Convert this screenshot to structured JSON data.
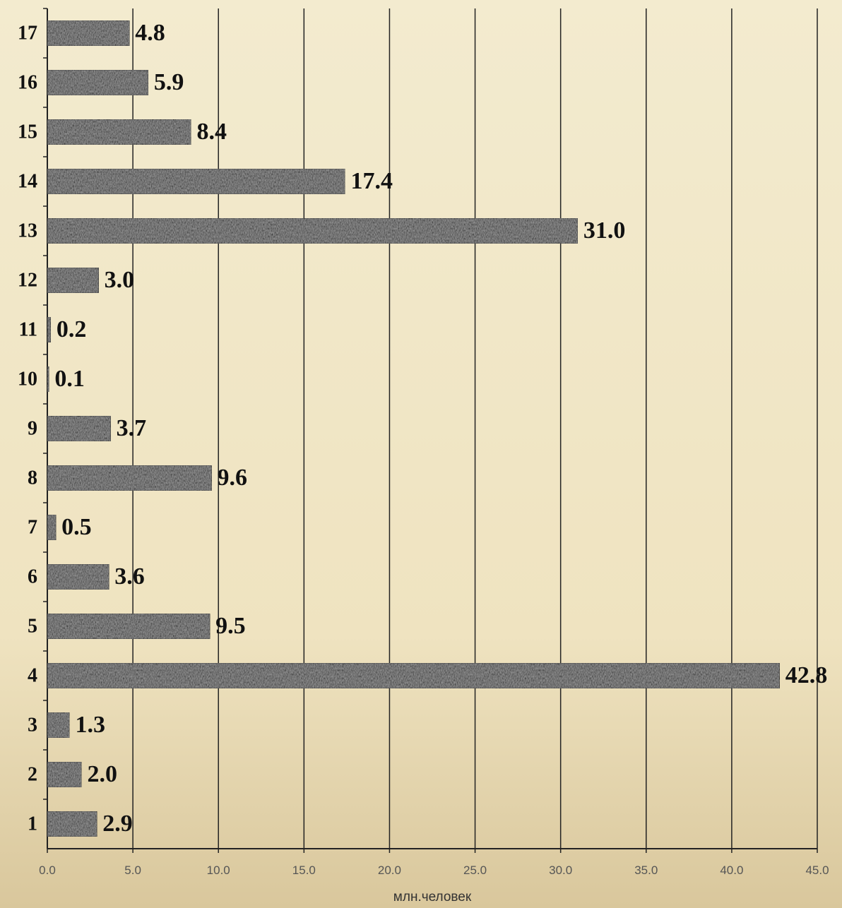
{
  "chart_data": {
    "type": "barh",
    "x_label": "млн.человек",
    "categories": [
      "1",
      "2",
      "3",
      "4",
      "5",
      "6",
      "7",
      "8",
      "9",
      "10",
      "11",
      "12",
      "13",
      "14",
      "15",
      "16",
      "17"
    ],
    "values": [
      2.9,
      2.0,
      1.3,
      42.8,
      9.5,
      3.6,
      0.5,
      9.6,
      3.7,
      0.1,
      0.2,
      3.0,
      31.0,
      17.4,
      8.4,
      5.9,
      4.8
    ],
    "value_labels": [
      "2.9",
      "2.0",
      "1.3",
      "42.8",
      "9.5",
      "3.6",
      "0.5",
      "9.6",
      "3.7",
      "0.1",
      "0.2",
      "3.0",
      "31.0",
      "17.4",
      "8.4",
      "5.9",
      "4.8"
    ],
    "color": "#8a8a8a",
    "xlim": [
      0,
      45
    ],
    "xticks": [
      {
        "value": 0,
        "label": "0.0"
      },
      {
        "value": 5,
        "label": "5.0"
      },
      {
        "value": 10,
        "label": "10.0"
      },
      {
        "value": 15,
        "label": "15.0"
      },
      {
        "value": 20,
        "label": "20.0"
      },
      {
        "value": 25,
        "label": "25.0"
      },
      {
        "value": 30,
        "label": "30.0"
      },
      {
        "value": 35,
        "label": "35.0"
      },
      {
        "value": 40,
        "label": "40.0"
      },
      {
        "value": 45,
        "label": "45.0"
      }
    ],
    "grid": true
  }
}
